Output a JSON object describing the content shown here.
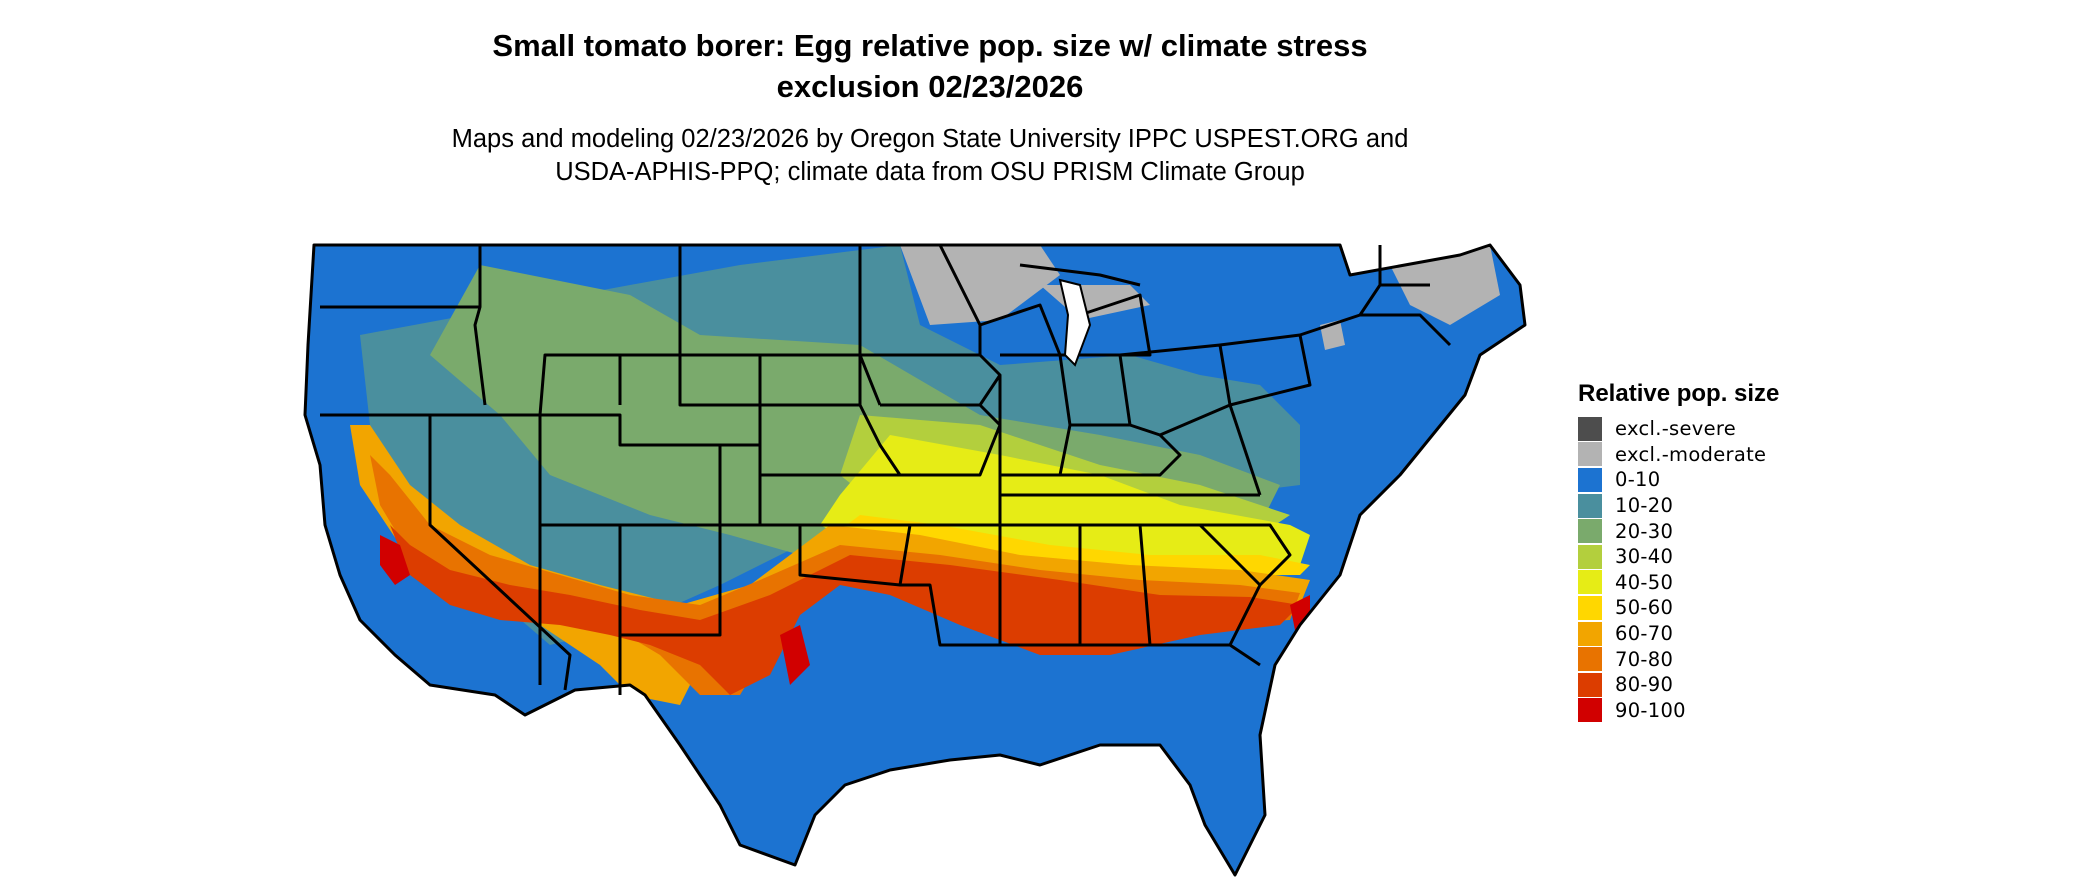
{
  "title_line1": "Small tomato borer: Egg relative pop. size w/ climate stress",
  "title_line2": "exclusion 02/23/2026",
  "subtitle_line1": "Maps and modeling 02/23/2026 by Oregon State University IPPC USPEST.ORG and",
  "subtitle_line2": "USDA-APHIS-PPQ; climate data from OSU PRISM Climate Group",
  "legend": {
    "title": "Relative pop. size",
    "items": [
      {
        "label": "excl.-severe",
        "color": "#4d4d4d"
      },
      {
        "label": "excl.-moderate",
        "color": "#b3b3b3"
      },
      {
        "label": "0-10",
        "color": "#1c73d1"
      },
      {
        "label": "10-20",
        "color": "#4a8f9e"
      },
      {
        "label": "20-30",
        "color": "#7aaa6c"
      },
      {
        "label": "30-40",
        "color": "#b3cf3d"
      },
      {
        "label": "40-50",
        "color": "#e6ec16"
      },
      {
        "label": "50-60",
        "color": "#ffd700"
      },
      {
        "label": "60-70",
        "color": "#f2a500"
      },
      {
        "label": "70-80",
        "color": "#e87300"
      },
      {
        "label": "80-90",
        "color": "#dc3d00"
      },
      {
        "label": "90-100",
        "color": "#d10000"
      }
    ]
  }
}
